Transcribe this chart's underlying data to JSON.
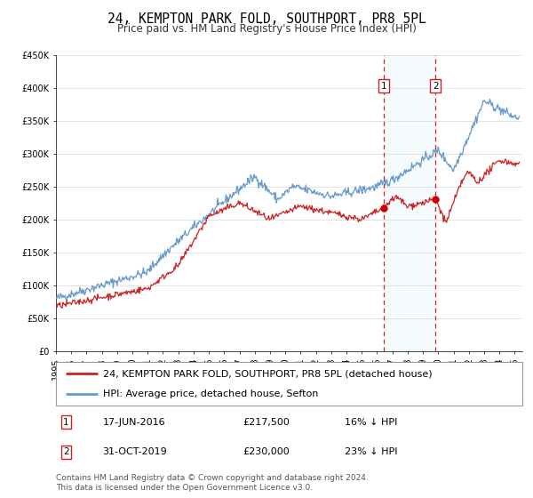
{
  "title": "24, KEMPTON PARK FOLD, SOUTHPORT, PR8 5PL",
  "subtitle": "Price paid vs. HM Land Registry's House Price Index (HPI)",
  "ylim": [
    0,
    450000
  ],
  "yticks": [
    0,
    50000,
    100000,
    150000,
    200000,
    250000,
    300000,
    350000,
    400000,
    450000
  ],
  "ytick_labels": [
    "£0",
    "£50K",
    "£100K",
    "£150K",
    "£200K",
    "£250K",
    "£300K",
    "£350K",
    "£400K",
    "£450K"
  ],
  "xlim_start": 1995.0,
  "xlim_end": 2025.5,
  "sale1_date": 2016.46,
  "sale1_price": 217500,
  "sale2_date": 2019.83,
  "sale2_price": 230000,
  "hpi_color": "#6699cc",
  "price_color": "#cc2222",
  "marker_color": "#cc0000",
  "vline_color": "#cc2222",
  "shade_color": "#d0e8f8",
  "background_color": "#ffffff",
  "grid_color": "#dddddd",
  "title_fontsize": 10.5,
  "subtitle_fontsize": 8.5,
  "tick_fontsize": 7,
  "legend_fontsize": 8,
  "footer_fontsize": 6.5,
  "legend1": "24, KEMPTON PARK FOLD, SOUTHPORT, PR8 5PL (detached house)",
  "legend2": "HPI: Average price, detached house, Sefton",
  "table_row1": [
    "1",
    "17-JUN-2016",
    "£217,500",
    "16% ↓ HPI"
  ],
  "table_row2": [
    "2",
    "31-OCT-2019",
    "£230,000",
    "23% ↓ HPI"
  ],
  "footer": "Contains HM Land Registry data © Crown copyright and database right 2024.\nThis data is licensed under the Open Government Licence v3.0."
}
